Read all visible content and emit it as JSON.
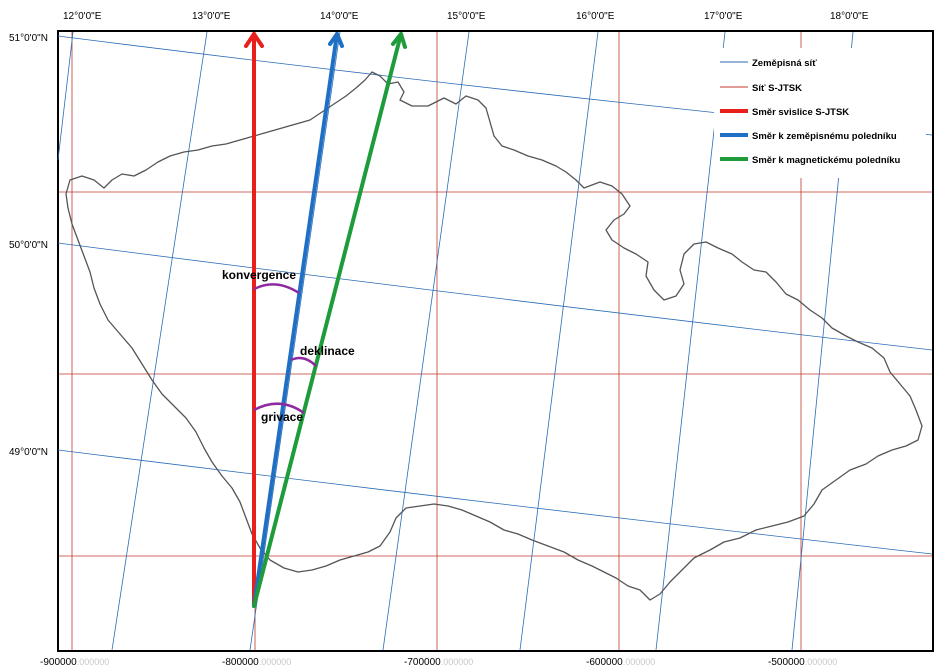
{
  "map": {
    "top_ticks": [
      "12°0'0\"E",
      "13°0'0\"E",
      "14°0'0\"E",
      "15°0'0\"E",
      "16°0'0\"E",
      "17°0'0\"E",
      "18°0'0\"E"
    ],
    "left_ticks": [
      "51°0'0\"N",
      "50°0'0\"N",
      "49°0'0\"N"
    ],
    "bottom_ticks": [
      {
        "main": "-900000",
        "faint": ".000000"
      },
      {
        "main": "-800000",
        "faint": ".000000"
      },
      {
        "main": "-700000",
        "faint": ".000000"
      },
      {
        "main": "-600000",
        "faint": ".000000"
      },
      {
        "main": "-500000",
        "faint": ".000000"
      }
    ],
    "angle_labels": {
      "konvergence": "konvergence",
      "deklinace": "deklinace",
      "grivace": "grivace"
    },
    "legend": {
      "items": [
        {
          "label": "Zeměpisná síť",
          "color": "#2a6db5",
          "kind": "thin"
        },
        {
          "label": "Síť S-JTSK",
          "color": "#c0392b",
          "kind": "thin"
        },
        {
          "label": "Směr svislice S-JTSK",
          "color": "#e8201c",
          "kind": "thick"
        },
        {
          "label": "Směr k zeměpisnému poledníku",
          "color": "#1f6fc5",
          "kind": "thick"
        },
        {
          "label": "Směr k magnetickému poledníku",
          "color": "#1e9b3a",
          "kind": "thick"
        }
      ]
    },
    "colors": {
      "graticule": "#2a6db5",
      "sjtsk_grid": "#c0392b",
      "vertical_arrow": "#e8201c",
      "geographic_arrow": "#1f6fc5",
      "magnetic_arrow": "#1e9b3a",
      "angle_arc": "#8e2aa0",
      "border": "#555555"
    }
  }
}
